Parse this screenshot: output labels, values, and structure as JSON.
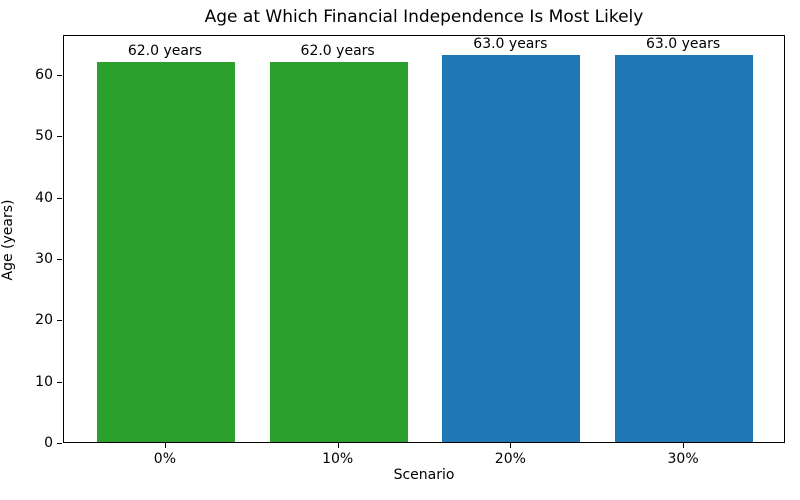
{
  "chart_data": {
    "type": "bar",
    "title": "Age at Which Financial Independence Is Most Likely",
    "xlabel": "Scenario",
    "ylabel": "Age (years)",
    "categories": [
      "0%",
      "10%",
      "20%",
      "30%"
    ],
    "values": [
      62.0,
      62.0,
      63.0,
      63.0
    ],
    "bar_labels": [
      "62.0 years",
      "62.0 years",
      "63.0 years",
      "63.0 years"
    ],
    "bar_colors": [
      "#2ca02c",
      "#2ca02c",
      "#1f77b4",
      "#1f77b4"
    ],
    "yticks": [
      0,
      10,
      20,
      30,
      40,
      50,
      60
    ],
    "ylim": [
      0,
      66.5
    ],
    "xlim": [
      -0.59,
      3.59
    ],
    "bar_width": 0.8,
    "grid": false,
    "legend_position": "none",
    "colors": {
      "axis": "#000000",
      "text": "#000000",
      "background": "#ffffff",
      "bar_green": "#2ca02c",
      "bar_blue": "#1f77b4"
    }
  }
}
